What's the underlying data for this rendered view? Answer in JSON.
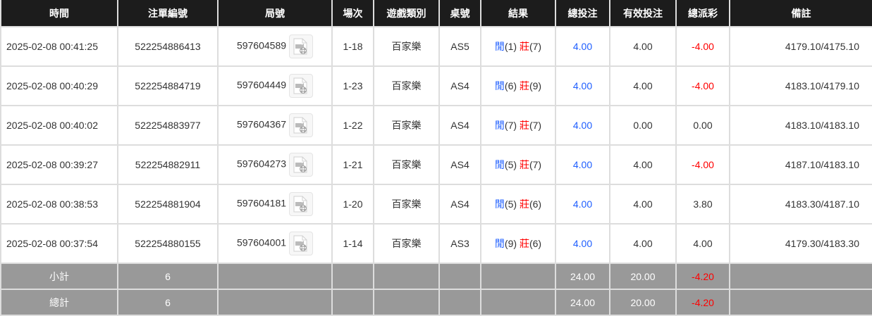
{
  "headers": [
    "時間",
    "注單編號",
    "局號",
    "場次",
    "遊戲類別",
    "桌號",
    "結果",
    "總投注",
    "有效投注",
    "總派彩",
    "備註"
  ],
  "rows": [
    {
      "time": "2025-02-08 00:41:25",
      "bet_id": "522254886413",
      "round": "597604589",
      "session": "1-18",
      "game": "百家樂",
      "table": "AS5",
      "player_label": "閒",
      "player_val": "(1)",
      "banker_label": "莊",
      "banker_val": "(7)",
      "total_bet": "4.00",
      "valid_bet": "4.00",
      "payout": "-4.00",
      "payout_negative": true,
      "remark": "4179.10/4175.10"
    },
    {
      "time": "2025-02-08 00:40:29",
      "bet_id": "522254884719",
      "round": "597604449",
      "session": "1-23",
      "game": "百家樂",
      "table": "AS4",
      "player_label": "閒",
      "player_val": "(6)",
      "banker_label": "莊",
      "banker_val": "(9)",
      "total_bet": "4.00",
      "valid_bet": "4.00",
      "payout": "-4.00",
      "payout_negative": true,
      "remark": "4183.10/4179.10"
    },
    {
      "time": "2025-02-08 00:40:02",
      "bet_id": "522254883977",
      "round": "597604367",
      "session": "1-22",
      "game": "百家樂",
      "table": "AS4",
      "player_label": "閒",
      "player_val": "(7)",
      "banker_label": "莊",
      "banker_val": "(7)",
      "total_bet": "4.00",
      "valid_bet": "0.00",
      "payout": "0.00",
      "payout_negative": false,
      "remark": "4183.10/4183.10"
    },
    {
      "time": "2025-02-08 00:39:27",
      "bet_id": "522254882911",
      "round": "597604273",
      "session": "1-21",
      "game": "百家樂",
      "table": "AS4",
      "player_label": "閒",
      "player_val": "(5)",
      "banker_label": "莊",
      "banker_val": "(7)",
      "total_bet": "4.00",
      "valid_bet": "4.00",
      "payout": "-4.00",
      "payout_negative": true,
      "remark": "4187.10/4183.10"
    },
    {
      "time": "2025-02-08 00:38:53",
      "bet_id": "522254881904",
      "round": "597604181",
      "session": "1-20",
      "game": "百家樂",
      "table": "AS4",
      "player_label": "閒",
      "player_val": "(5)",
      "banker_label": "莊",
      "banker_val": "(6)",
      "total_bet": "4.00",
      "valid_bet": "4.00",
      "payout": "3.80",
      "payout_negative": false,
      "remark": "4183.30/4187.10"
    },
    {
      "time": "2025-02-08 00:37:54",
      "bet_id": "522254880155",
      "round": "597604001",
      "session": "1-14",
      "game": "百家樂",
      "table": "AS3",
      "player_label": "閒",
      "player_val": "(9)",
      "banker_label": "莊",
      "banker_val": "(6)",
      "total_bet": "4.00",
      "valid_bet": "4.00",
      "payout": "4.00",
      "payout_negative": false,
      "remark": "4179.30/4183.30"
    }
  ],
  "summary": [
    {
      "label": "小計",
      "count": "6",
      "total_bet": "24.00",
      "valid_bet": "20.00",
      "payout": "-4.20"
    },
    {
      "label": "總計",
      "count": "6",
      "total_bet": "24.00",
      "valid_bet": "20.00",
      "payout": "-4.20"
    }
  ],
  "colors": {
    "header_bg": "#1c1c1c",
    "summary_bg": "#999999",
    "player": "#1e5eff",
    "banker_negative": "#ff0000"
  },
  "icons": {
    "round_video": "video-replay-icon"
  }
}
